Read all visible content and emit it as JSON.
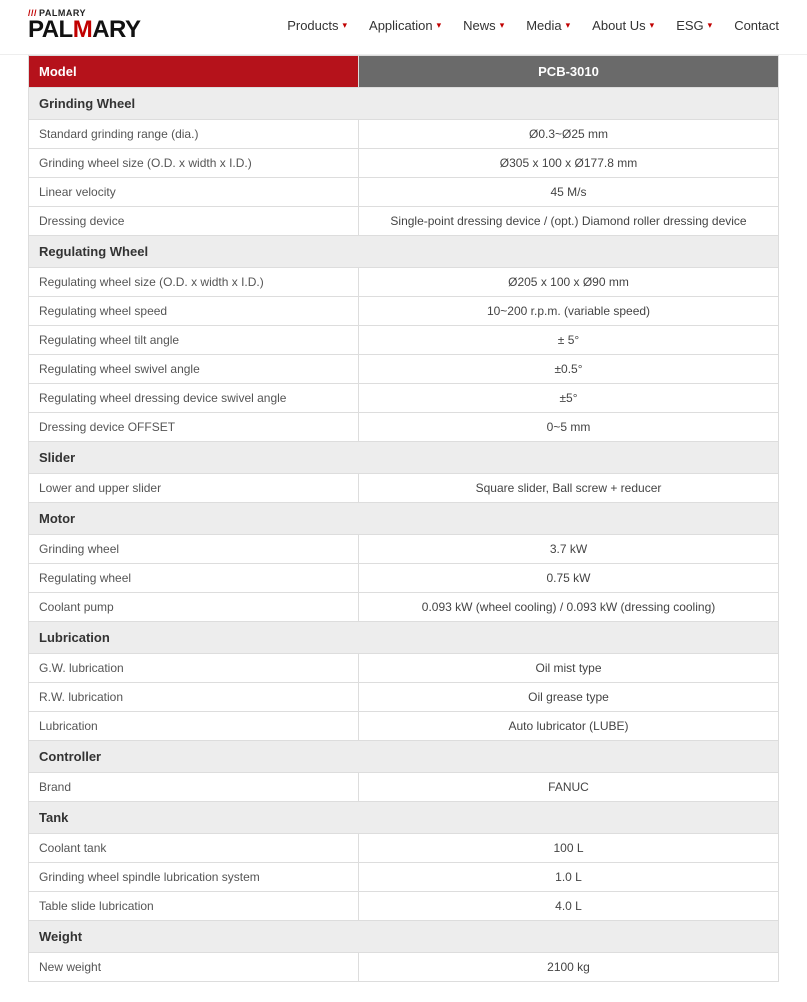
{
  "logo": {
    "small_text": "PALMARY",
    "big_prefix": "PAL",
    "big_accent": "M",
    "big_suffix": "ARY"
  },
  "nav": [
    {
      "label": "Products",
      "dropdown": true
    },
    {
      "label": "Application",
      "dropdown": true
    },
    {
      "label": "News",
      "dropdown": true
    },
    {
      "label": "Media",
      "dropdown": true
    },
    {
      "label": "About Us",
      "dropdown": true
    },
    {
      "label": "ESG",
      "dropdown": true
    },
    {
      "label": "Contact",
      "dropdown": false
    }
  ],
  "table": {
    "header": {
      "col1": "Model",
      "col2": "PCB-3010"
    },
    "sections": [
      {
        "title": "Grinding Wheel",
        "rows": [
          {
            "label": "Standard grinding range (dia.)",
            "value": "Ø0.3~Ø25 mm"
          },
          {
            "label": "Grinding wheel size (O.D. x width x I.D.)",
            "value": "Ø305 x 100 x Ø177.8 mm"
          },
          {
            "label": "Linear velocity",
            "value": "45 M/s"
          },
          {
            "label": "Dressing device",
            "value": "Single-point dressing device / (opt.) Diamond roller dressing device"
          }
        ]
      },
      {
        "title": "Regulating Wheel",
        "rows": [
          {
            "label": "Regulating wheel size (O.D. x width x I.D.)",
            "value": "Ø205 x 100 x Ø90 mm"
          },
          {
            "label": "Regulating wheel speed",
            "value": "10~200 r.p.m. (variable speed)"
          },
          {
            "label": "Regulating wheel tilt angle",
            "value": "± 5°"
          },
          {
            "label": "Regulating wheel swivel angle",
            "value": "±0.5°"
          },
          {
            "label": "Regulating wheel dressing device swivel angle",
            "value": "±5°"
          },
          {
            "label": "Dressing device OFFSET",
            "value": "0~5 mm"
          }
        ]
      },
      {
        "title": "Slider",
        "rows": [
          {
            "label": "Lower and upper slider",
            "value": "Square slider, Ball screw + reducer"
          }
        ]
      },
      {
        "title": "Motor",
        "rows": [
          {
            "label": "Grinding wheel",
            "value": "3.7 kW"
          },
          {
            "label": "Regulating wheel",
            "value": "0.75 kW"
          },
          {
            "label": "Coolant pump",
            "value": "0.093 kW (wheel cooling) / 0.093 kW (dressing cooling)"
          }
        ]
      },
      {
        "title": "Lubrication",
        "rows": [
          {
            "label": "G.W. lubrication",
            "value": "Oil mist type"
          },
          {
            "label": "R.W. lubrication",
            "value": "Oil grease type"
          },
          {
            "label": "Lubrication",
            "value": "Auto lubricator (LUBE)"
          }
        ]
      },
      {
        "title": "Controller",
        "rows": [
          {
            "label": "Brand",
            "value": "FANUC"
          }
        ]
      },
      {
        "title": "Tank",
        "rows": [
          {
            "label": "Coolant tank",
            "value": "100 L"
          },
          {
            "label": "Grinding wheel spindle lubrication system",
            "value": "1.0 L"
          },
          {
            "label": "Table slide lubrication",
            "value": "4.0 L"
          }
        ]
      },
      {
        "title": "Weight",
        "rows": [
          {
            "label": "New weight",
            "value": "2100 kg"
          }
        ]
      }
    ]
  },
  "colors": {
    "brand_red": "#b5121b",
    "header_gray": "#6a6a6a",
    "section_bg": "#ededed",
    "border": "#dddddd"
  }
}
